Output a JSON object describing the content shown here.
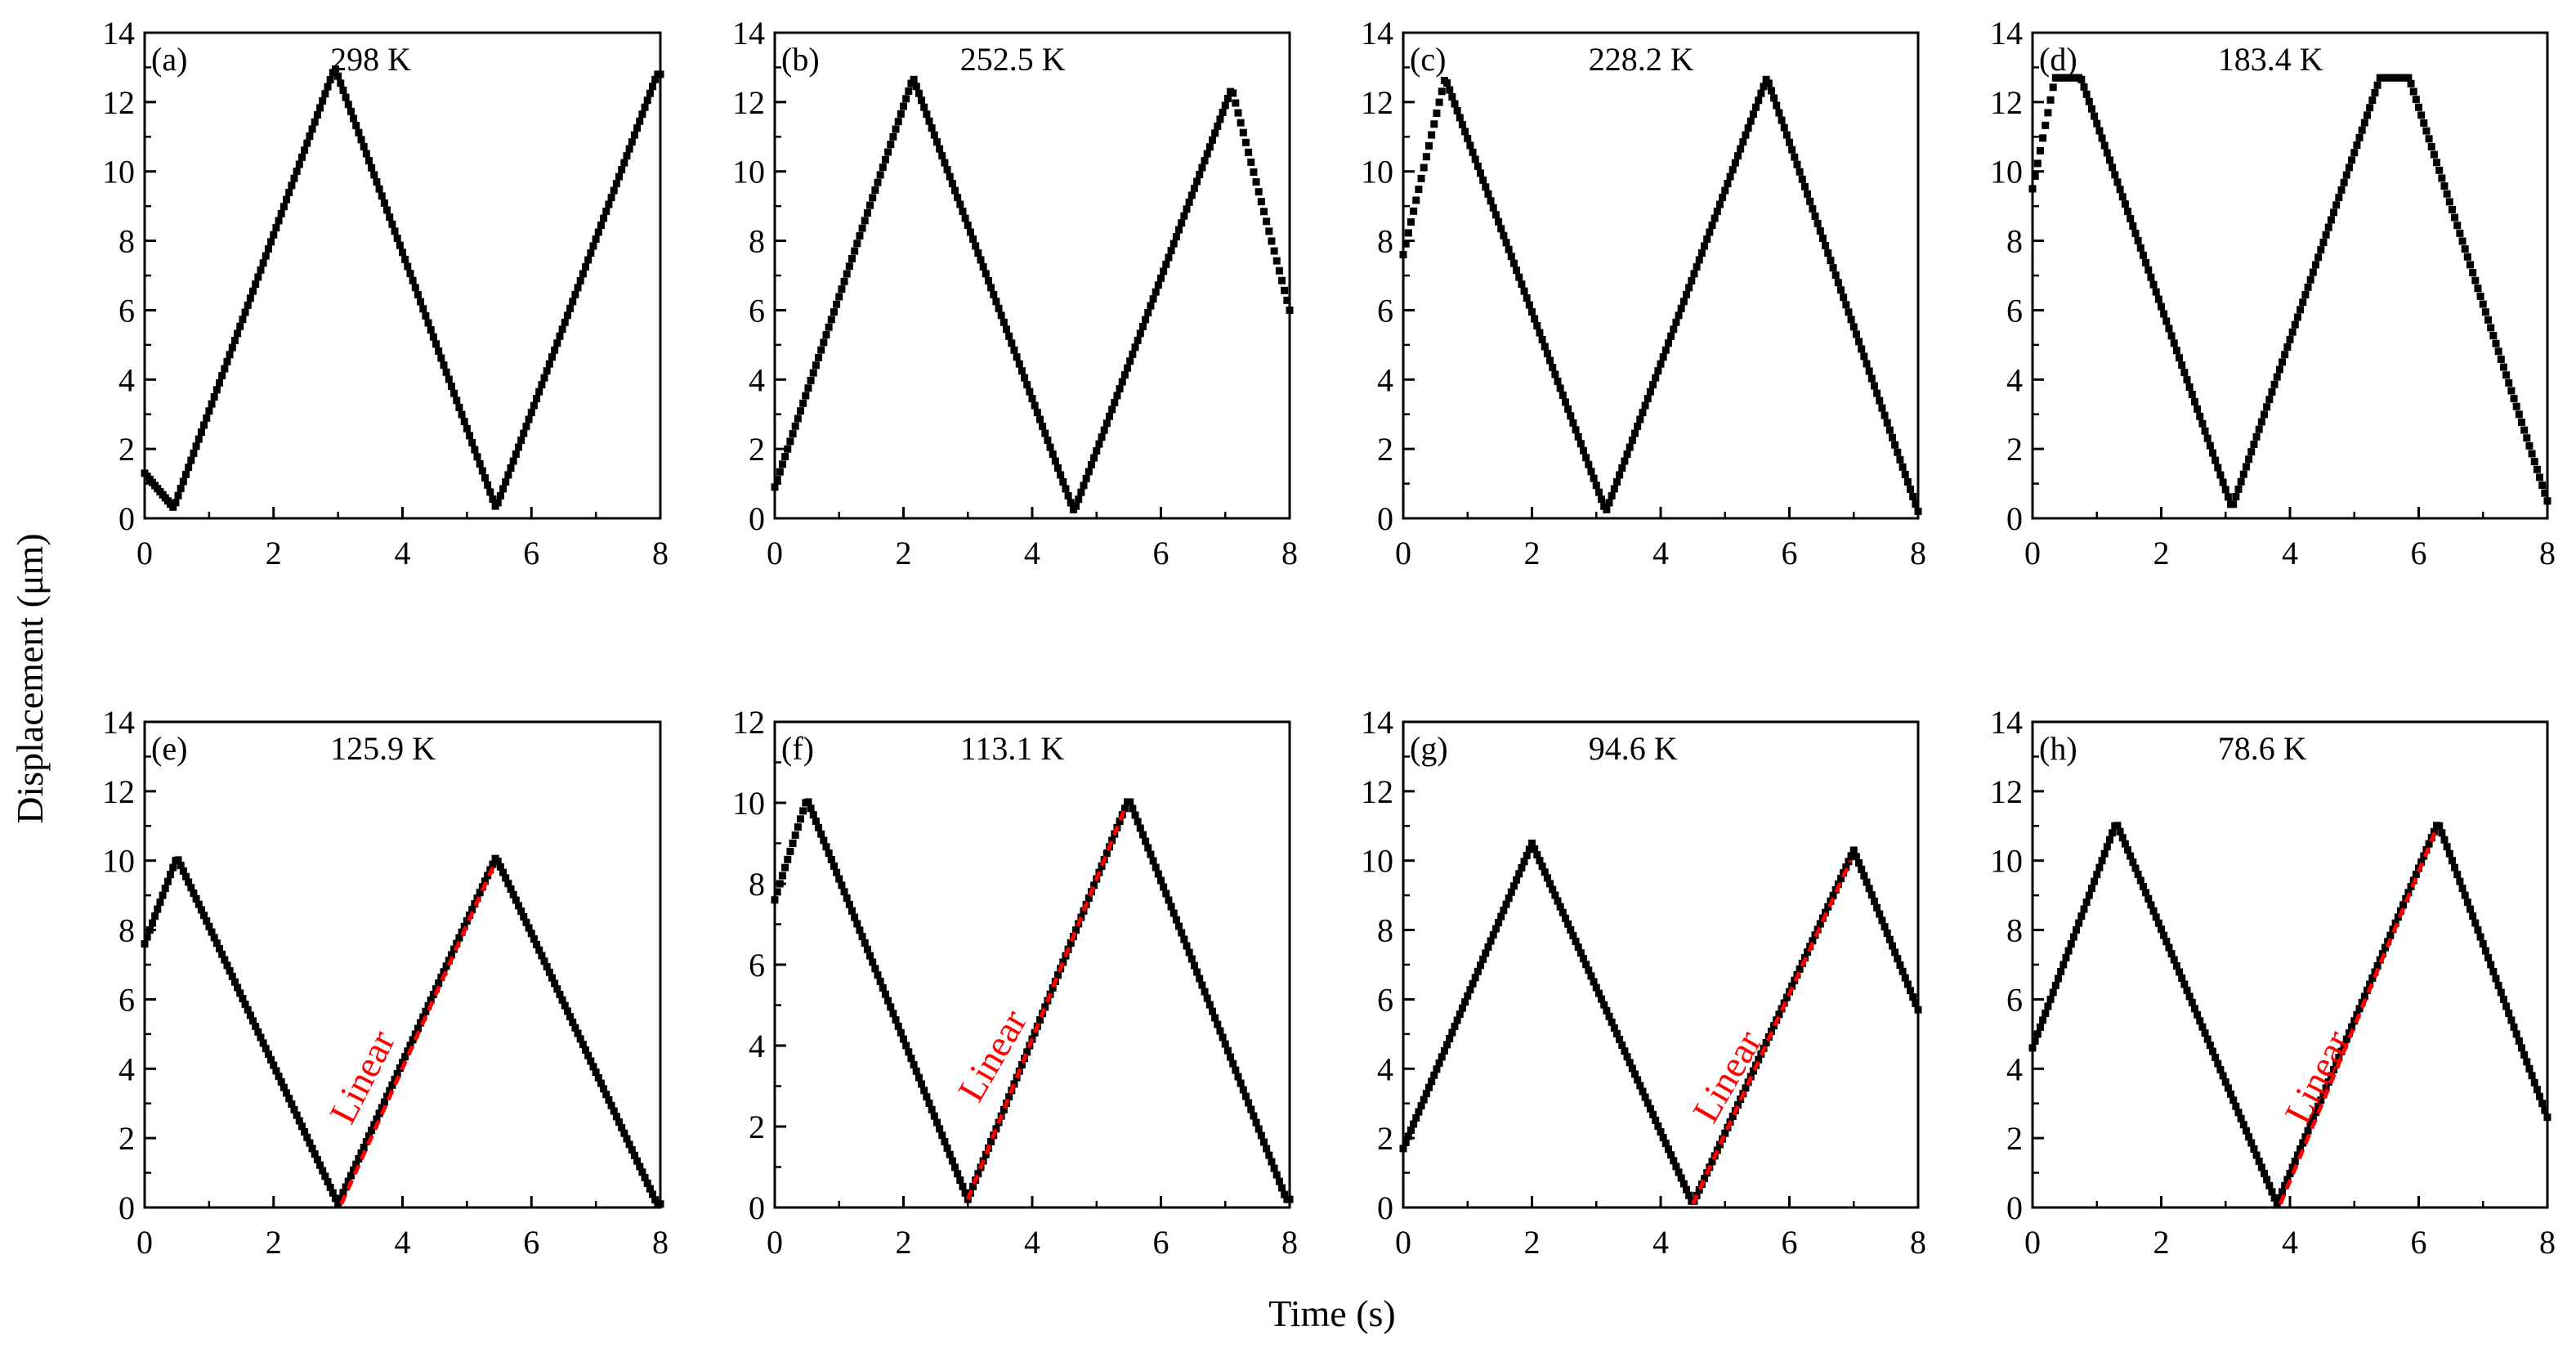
{
  "figure": {
    "xlabel": "Time (s)",
    "ylabel": "Displacement (μm)"
  },
  "chart_data": [
    {
      "type": "scatter",
      "id": "a",
      "panel_label": "(a)",
      "title": "298 K",
      "xlabel": "Time (s)",
      "ylabel": "Displacement (μm)",
      "xlim": [
        0,
        8
      ],
      "ylim": [
        0,
        14
      ],
      "xticks": [
        "0",
        "2",
        "4",
        "6",
        "8"
      ],
      "yticks": [
        "0",
        "2",
        "4",
        "6",
        "8",
        "10",
        "12",
        "14"
      ],
      "series": [
        {
          "name": "displacement",
          "color": "#000000",
          "knots_t": [
            0,
            0.45,
            2.95,
            5.45,
            7.95,
            8.0
          ],
          "knots_d": [
            1.3,
            0.3,
            13.0,
            0.3,
            12.8,
            12.8
          ]
        }
      ]
    },
    {
      "type": "scatter",
      "id": "b",
      "panel_label": "(b)",
      "title": "252.5 K",
      "xlabel": "Time (s)",
      "ylabel": "Displacement (μm)",
      "xlim": [
        0,
        8
      ],
      "ylim": [
        0,
        14
      ],
      "xticks": [
        "0",
        "2",
        "4",
        "6",
        "8"
      ],
      "yticks": [
        "0",
        "2",
        "4",
        "6",
        "8",
        "10",
        "12",
        "14"
      ],
      "series": [
        {
          "name": "displacement",
          "color": "#000000",
          "knots_t": [
            0,
            2.15,
            4.65,
            7.1,
            8.0
          ],
          "knots_d": [
            0.9,
            12.7,
            0.2,
            12.4,
            6.0
          ]
        }
      ]
    },
    {
      "type": "scatter",
      "id": "c",
      "panel_label": "(c)",
      "title": "228.2 K",
      "xlabel": "Time (s)",
      "ylabel": "Displacement (μm)",
      "xlim": [
        0,
        8
      ],
      "ylim": [
        0,
        14
      ],
      "xticks": [
        "0",
        "2",
        "4",
        "6",
        "8"
      ],
      "yticks": [
        "0",
        "2",
        "4",
        "6",
        "8",
        "10",
        "12",
        "14"
      ],
      "series": [
        {
          "name": "displacement",
          "color": "#000000",
          "knots_t": [
            0,
            0.65,
            3.15,
            5.65,
            8.0
          ],
          "knots_d": [
            7.6,
            12.7,
            0.2,
            12.7,
            0.2
          ]
        }
      ]
    },
    {
      "type": "scatter",
      "id": "d",
      "panel_label": "(d)",
      "title": "183.4 K",
      "xlabel": "Time (s)",
      "ylabel": "Displacement (μm)",
      "xlim": [
        0,
        8
      ],
      "ylim": [
        0,
        14
      ],
      "xticks": [
        "0",
        "2",
        "4",
        "6",
        "8"
      ],
      "yticks": [
        "0",
        "2",
        "4",
        "6",
        "8",
        "10",
        "12",
        "14"
      ],
      "series": [
        {
          "name": "displacement",
          "color": "#000000",
          "knots_t": [
            0,
            0.35,
            0.75,
            3.1,
            5.4,
            5.85,
            8.0
          ],
          "knots_d": [
            9.5,
            12.7,
            12.7,
            0.3,
            12.7,
            12.7,
            0.5
          ]
        }
      ]
    },
    {
      "type": "scatter",
      "id": "e",
      "panel_label": "(e)",
      "title": "125.9 K",
      "xlabel": "Time (s)",
      "ylabel": "Displacement (μm)",
      "xlim": [
        0,
        8
      ],
      "ylim": [
        0,
        14
      ],
      "xticks": [
        "0",
        "2",
        "4",
        "6",
        "8"
      ],
      "yticks": [
        "0",
        "2",
        "4",
        "6",
        "8",
        "10",
        "12",
        "14"
      ],
      "series": [
        {
          "name": "displacement",
          "color": "#000000",
          "knots_t": [
            0,
            0.5,
            3.0,
            5.45,
            7.95,
            8.0
          ],
          "knots_d": [
            7.6,
            10.1,
            0.1,
            10.1,
            0.1,
            0.1
          ]
        }
      ],
      "annotation": {
        "text": "Linear",
        "color": "#ff0000",
        "line": {
          "x": [
            3.05,
            5.4
          ],
          "y": [
            0.1,
            9.8
          ]
        }
      }
    },
    {
      "type": "scatter",
      "id": "f",
      "panel_label": "(f)",
      "title": "113.1 K",
      "xlabel": "Time (s)",
      "ylabel": "Displacement (μm)",
      "xlim": [
        0,
        8
      ],
      "ylim": [
        0,
        12
      ],
      "xticks": [
        "0",
        "2",
        "4",
        "6",
        "8"
      ],
      "yticks": [
        "0",
        "2",
        "4",
        "6",
        "8",
        "10",
        "12"
      ],
      "series": [
        {
          "name": "displacement",
          "color": "#000000",
          "knots_t": [
            0,
            0.5,
            3.0,
            5.5,
            7.95,
            8.0
          ],
          "knots_d": [
            7.6,
            10.1,
            0.2,
            10.1,
            0.2,
            0.2
          ]
        }
      ],
      "annotation": {
        "text": "Linear",
        "color": "#ff0000",
        "line": {
          "x": [
            3.0,
            5.45
          ],
          "y": [
            0.2,
            9.9
          ]
        }
      }
    },
    {
      "type": "scatter",
      "id": "g",
      "panel_label": "(g)",
      "title": "94.6 K",
      "xlabel": "Time (s)",
      "ylabel": "Displacement (μm)",
      "xlim": [
        0,
        8
      ],
      "ylim": [
        0,
        14
      ],
      "xticks": [
        "0",
        "2",
        "4",
        "6",
        "8"
      ],
      "yticks": [
        "0",
        "2",
        "4",
        "6",
        "8",
        "10",
        "12",
        "14"
      ],
      "series": [
        {
          "name": "displacement",
          "color": "#000000",
          "knots_t": [
            0,
            2.0,
            4.5,
            7.0,
            8.0
          ],
          "knots_d": [
            1.7,
            10.5,
            0.1,
            10.3,
            5.7
          ]
        }
      ],
      "annotation": {
        "text": "Linear",
        "color": "#ff0000",
        "line": {
          "x": [
            4.5,
            6.95
          ],
          "y": [
            0.1,
            10.0
          ]
        }
      }
    },
    {
      "type": "scatter",
      "id": "h",
      "panel_label": "(h)",
      "title": "78.6 K",
      "xlabel": "Time (s)",
      "ylabel": "Displacement (μm)",
      "xlim": [
        0,
        8
      ],
      "ylim": [
        0,
        14
      ],
      "xticks": [
        "0",
        "2",
        "4",
        "6",
        "8"
      ],
      "yticks": [
        "0",
        "2",
        "4",
        "6",
        "8",
        "10",
        "12",
        "14"
      ],
      "series": [
        {
          "name": "displacement",
          "color": "#000000",
          "knots_t": [
            0,
            1.3,
            3.8,
            6.3,
            8.0
          ],
          "knots_d": [
            4.6,
            11.1,
            0.1,
            11.1,
            2.6
          ]
        }
      ],
      "annotation": {
        "text": "Linear",
        "color": "#ff0000",
        "line": {
          "x": [
            3.85,
            6.25
          ],
          "y": [
            0.1,
            10.8
          ]
        }
      }
    }
  ]
}
